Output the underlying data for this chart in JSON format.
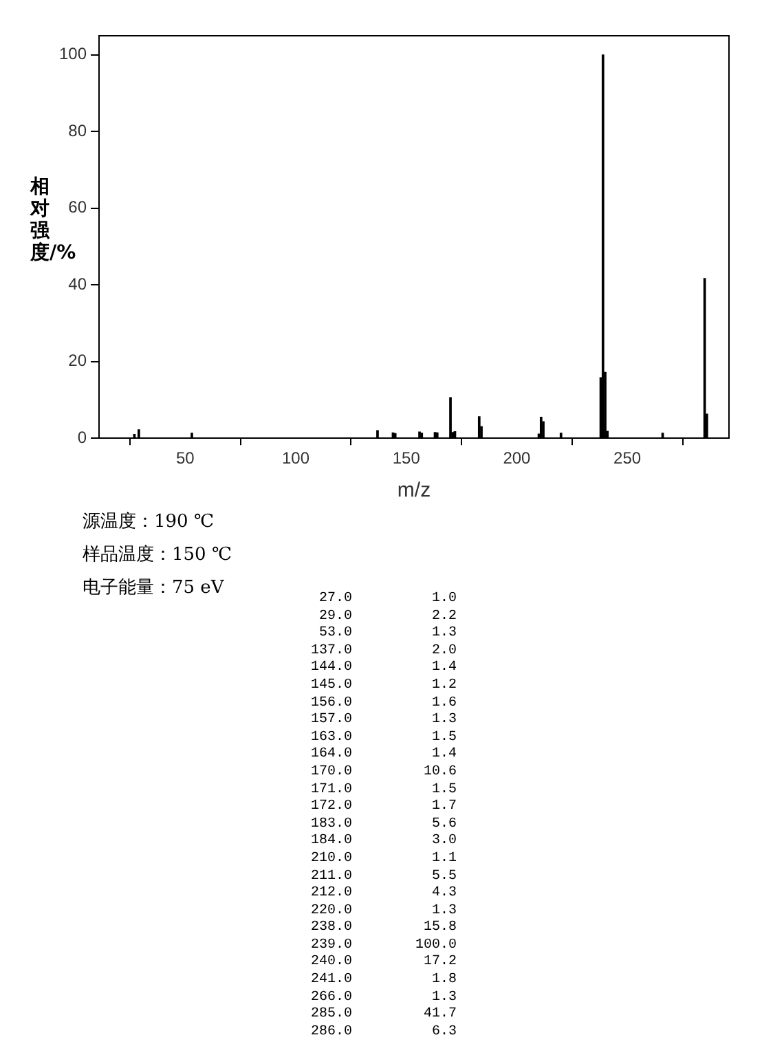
{
  "chart_data": {
    "type": "bar",
    "xlabel": "m/z",
    "ylabel": "相对强度/%",
    "x": [
      27,
      29,
      53,
      137,
      144,
      145,
      156,
      157,
      163,
      164,
      170,
      171,
      172,
      183,
      184,
      210,
      211,
      212,
      220,
      238,
      239,
      240,
      241,
      266,
      285,
      286
    ],
    "values": [
      1.0,
      2.2,
      1.3,
      2.0,
      1.4,
      1.2,
      1.6,
      1.3,
      1.5,
      1.4,
      10.6,
      1.5,
      1.7,
      5.6,
      3.0,
      1.1,
      5.5,
      4.3,
      1.3,
      15.8,
      100.0,
      17.2,
      1.8,
      1.3,
      41.7,
      6.3
    ],
    "color": "#000000",
    "xlim": [
      11,
      296
    ],
    "xticks": [
      50,
      100,
      150,
      200,
      250
    ],
    "ylim": [
      0,
      105
    ],
    "yticks": [
      0,
      20,
      40,
      60,
      80,
      100
    ],
    "grid": false,
    "legend": false,
    "annotations": [
      "源温度：190 ℃",
      "样品温度：150 ℃",
      "电子能量：75 eV",
      "27.0",
      "1.0",
      "29.0",
      "2.2",
      "53.0",
      "1.3",
      "137.0",
      "2.0",
      "144.0",
      "1.4",
      "145.0",
      "1.2",
      "156.0",
      "1.6",
      "157.0",
      "1.3",
      "163.0",
      "1.5",
      "164.0",
      "1.4",
      "170.0",
      "10.6",
      "171.0",
      "1.5",
      "172.0",
      "1.7",
      "183.0",
      "5.6",
      "184.0",
      "3.0",
      "210.0",
      "1.1",
      "211.0",
      "5.5",
      "212.0",
      "4.3",
      "220.0",
      "1.3",
      "238.0",
      "15.8",
      "239.0",
      "100.0",
      "240.0",
      "17.2",
      "241.0",
      "1.8",
      "266.0",
      "1.3",
      "285.0",
      "41.7",
      "286.0",
      "6.3"
    ]
  }
}
